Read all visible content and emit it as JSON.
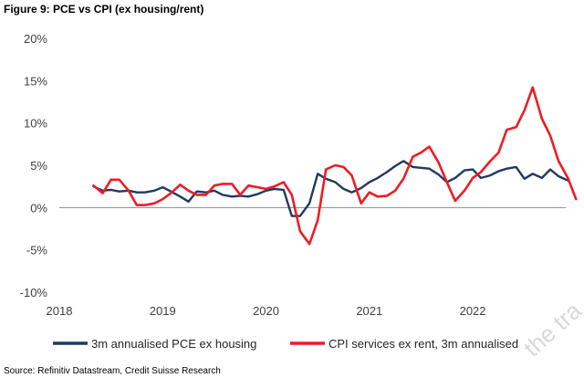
{
  "figure": {
    "title": "Figure 9: PCE vs CPI (ex housing/rent)",
    "source": "Source: Refinitiv Datastream, Credit Suisse Research",
    "watermark": "the tra"
  },
  "chart_data": {
    "type": "line",
    "title": "",
    "xlabel": "",
    "ylabel": "",
    "xlim": [
      2018.0,
      2022.9
    ],
    "ylim": [
      -10,
      20
    ],
    "x_ticks": [
      "2018",
      "2019",
      "2020",
      "2021",
      "2022"
    ],
    "y_ticks": [
      "20%",
      "15%",
      "10%",
      "5%",
      "0%",
      "-5%",
      "-10%"
    ],
    "grid": false,
    "legend_position": "bottom",
    "series": [
      {
        "name": "3m annualised PCE ex housing",
        "color": "#1f3a5f",
        "points": [
          [
            2018.33,
            2.5
          ],
          [
            2018.42,
            2.0
          ],
          [
            2018.5,
            2.1
          ],
          [
            2018.58,
            1.9
          ],
          [
            2018.67,
            2.0
          ],
          [
            2018.75,
            1.8
          ],
          [
            2018.83,
            1.8
          ],
          [
            2018.92,
            2.0
          ],
          [
            2019.0,
            2.4
          ],
          [
            2019.08,
            1.9
          ],
          [
            2019.17,
            1.3
          ],
          [
            2019.25,
            0.7
          ],
          [
            2019.33,
            1.9
          ],
          [
            2019.42,
            1.8
          ],
          [
            2019.5,
            2.0
          ],
          [
            2019.58,
            1.5
          ],
          [
            2019.67,
            1.3
          ],
          [
            2019.75,
            1.4
          ],
          [
            2019.83,
            1.3
          ],
          [
            2019.92,
            1.6
          ],
          [
            2020.0,
            2.0
          ],
          [
            2020.08,
            2.2
          ],
          [
            2020.17,
            2.1
          ],
          [
            2020.25,
            -1.0
          ],
          [
            2020.33,
            -1.0
          ],
          [
            2020.42,
            0.5
          ],
          [
            2020.5,
            4.0
          ],
          [
            2020.58,
            3.4
          ],
          [
            2020.67,
            3.0
          ],
          [
            2020.75,
            2.2
          ],
          [
            2020.83,
            1.8
          ],
          [
            2020.92,
            2.3
          ],
          [
            2021.0,
            3.0
          ],
          [
            2021.08,
            3.5
          ],
          [
            2021.17,
            4.2
          ],
          [
            2021.25,
            4.9
          ],
          [
            2021.33,
            5.5
          ],
          [
            2021.42,
            4.8
          ],
          [
            2021.5,
            4.7
          ],
          [
            2021.58,
            4.6
          ],
          [
            2021.67,
            3.9
          ],
          [
            2021.75,
            3.0
          ],
          [
            2021.83,
            3.5
          ],
          [
            2021.92,
            4.4
          ],
          [
            2022.0,
            4.5
          ],
          [
            2022.08,
            3.5
          ],
          [
            2022.17,
            3.8
          ],
          [
            2022.25,
            4.3
          ],
          [
            2022.33,
            4.6
          ],
          [
            2022.42,
            4.8
          ],
          [
            2022.5,
            3.4
          ],
          [
            2022.58,
            4.0
          ],
          [
            2022.67,
            3.5
          ],
          [
            2022.75,
            4.5
          ],
          [
            2022.83,
            3.7
          ],
          [
            2022.92,
            3.2
          ]
        ]
      },
      {
        "name": "CPI services ex rent, 3m annualised",
        "color": "#ee1c24",
        "points": [
          [
            2018.33,
            2.6
          ],
          [
            2018.42,
            1.7
          ],
          [
            2018.5,
            3.3
          ],
          [
            2018.58,
            3.3
          ],
          [
            2018.67,
            2.0
          ],
          [
            2018.75,
            0.3
          ],
          [
            2018.83,
            0.3
          ],
          [
            2018.92,
            0.5
          ],
          [
            2019.0,
            1.0
          ],
          [
            2019.08,
            1.7
          ],
          [
            2019.17,
            2.7
          ],
          [
            2019.25,
            2.0
          ],
          [
            2019.33,
            1.5
          ],
          [
            2019.42,
            1.5
          ],
          [
            2019.5,
            2.6
          ],
          [
            2019.58,
            2.8
          ],
          [
            2019.67,
            2.8
          ],
          [
            2019.75,
            1.5
          ],
          [
            2019.83,
            2.6
          ],
          [
            2019.92,
            2.4
          ],
          [
            2020.0,
            2.2
          ],
          [
            2020.08,
            2.5
          ],
          [
            2020.17,
            3.0
          ],
          [
            2020.25,
            1.5
          ],
          [
            2020.33,
            -2.8
          ],
          [
            2020.42,
            -4.3
          ],
          [
            2020.5,
            -1.5
          ],
          [
            2020.58,
            4.5
          ],
          [
            2020.67,
            5.0
          ],
          [
            2020.75,
            4.8
          ],
          [
            2020.83,
            3.8
          ],
          [
            2020.92,
            0.5
          ],
          [
            2021.0,
            1.8
          ],
          [
            2021.08,
            1.3
          ],
          [
            2021.17,
            1.4
          ],
          [
            2021.25,
            2.0
          ],
          [
            2021.33,
            3.4
          ],
          [
            2021.42,
            6.0
          ],
          [
            2021.5,
            6.5
          ],
          [
            2021.58,
            7.2
          ],
          [
            2021.67,
            5.3
          ],
          [
            2021.75,
            3.0
          ],
          [
            2021.83,
            0.8
          ],
          [
            2021.92,
            2.0
          ],
          [
            2022.0,
            3.5
          ],
          [
            2022.08,
            4.2
          ],
          [
            2022.17,
            5.5
          ],
          [
            2022.25,
            6.5
          ],
          [
            2022.33,
            9.2
          ],
          [
            2022.42,
            9.5
          ],
          [
            2022.5,
            11.5
          ],
          [
            2022.58,
            14.2
          ],
          [
            2022.67,
            10.5
          ],
          [
            2022.75,
            8.5
          ],
          [
            2022.83,
            5.5
          ],
          [
            2022.92,
            3.5
          ],
          [
            2023.0,
            1.0
          ]
        ]
      }
    ]
  }
}
